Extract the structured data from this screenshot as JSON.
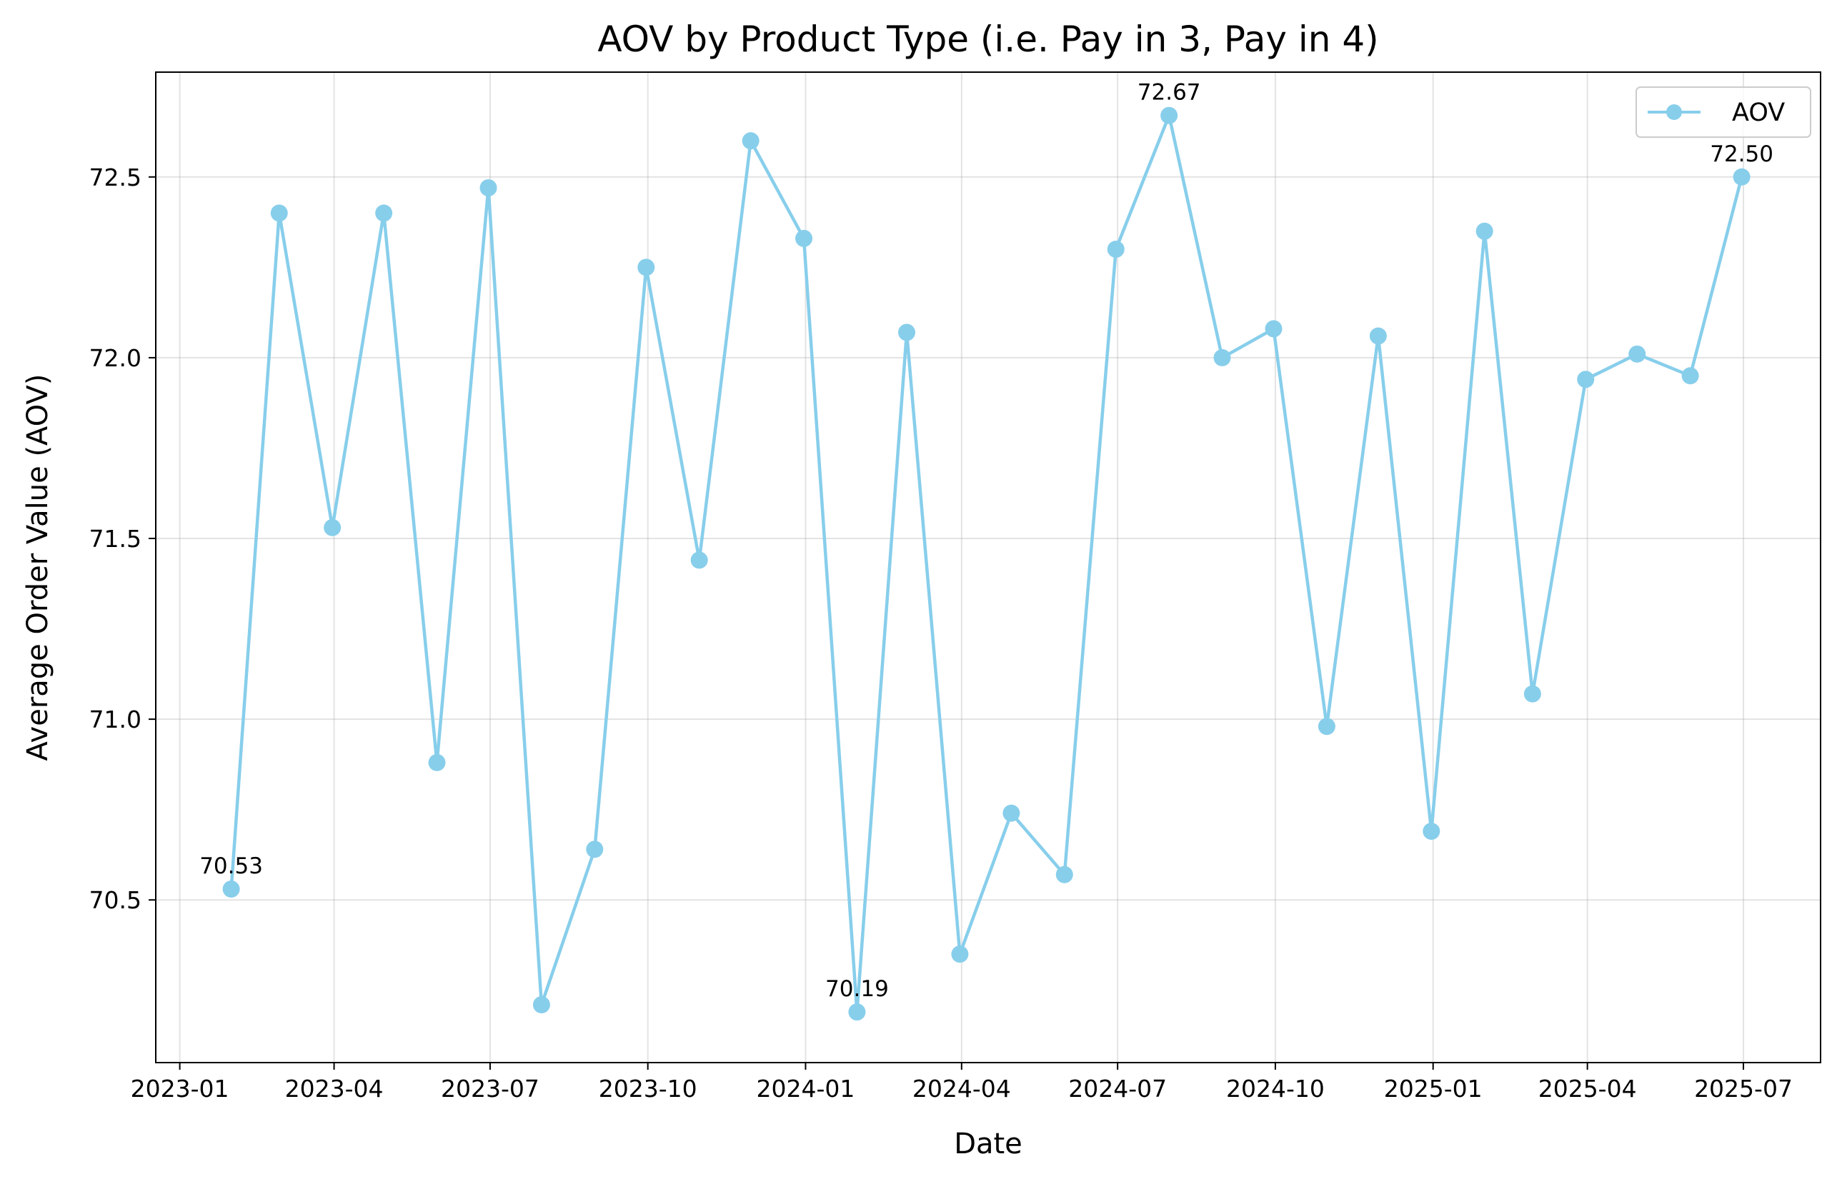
{
  "chart_data": {
    "type": "line",
    "title": "AOV by Product Type (i.e. Pay in 3, Pay in 4)",
    "xlabel": "Date",
    "ylabel": "Average Order Value (AOV)",
    "x_tick_labels": [
      "2023-01",
      "2023-04",
      "2023-07",
      "2023-10",
      "2024-01",
      "2024-04",
      "2024-07",
      "2024-10",
      "2025-01",
      "2025-04",
      "2025-07"
    ],
    "y_tick_labels": [
      "70.5",
      "71.0",
      "71.5",
      "72.0",
      "72.5"
    ],
    "xlim": [
      "2022-12-18",
      "2025-08-15"
    ],
    "ylim": [
      70.05,
      72.79
    ],
    "grid": true,
    "legend_position": "top-right",
    "series": [
      {
        "name": "AOV",
        "color": "#87CEEB",
        "marker": "circle",
        "x": [
          "2023-01-31",
          "2023-02-28",
          "2023-03-31",
          "2023-04-30",
          "2023-05-31",
          "2023-06-30",
          "2023-07-31",
          "2023-08-31",
          "2023-09-30",
          "2023-10-31",
          "2023-11-30",
          "2023-12-31",
          "2024-01-31",
          "2024-02-29",
          "2024-03-31",
          "2024-04-30",
          "2024-05-31",
          "2024-06-30",
          "2024-07-31",
          "2024-08-31",
          "2024-09-30",
          "2024-10-31",
          "2024-11-30",
          "2024-12-31",
          "2025-01-31",
          "2025-02-28",
          "2025-03-31",
          "2025-04-30",
          "2025-05-31",
          "2025-06-30"
        ],
        "values": [
          70.53,
          72.4,
          71.53,
          72.4,
          70.88,
          72.47,
          70.21,
          70.64,
          72.25,
          71.44,
          72.6,
          72.33,
          70.19,
          72.07,
          70.35,
          70.74,
          70.57,
          72.3,
          72.67,
          72.0,
          72.08,
          70.98,
          72.06,
          70.69,
          72.35,
          71.07,
          71.94,
          72.01,
          71.95,
          72.5
        ]
      }
    ],
    "annotations": [
      {
        "x": "2023-01-31",
        "y": 70.53,
        "text": "70.53"
      },
      {
        "x": "2024-01-31",
        "y": 70.19,
        "text": "70.19"
      },
      {
        "x": "2024-07-31",
        "y": 72.67,
        "text": "72.67"
      },
      {
        "x": "2025-06-30",
        "y": 72.5,
        "text": "72.50"
      }
    ]
  }
}
